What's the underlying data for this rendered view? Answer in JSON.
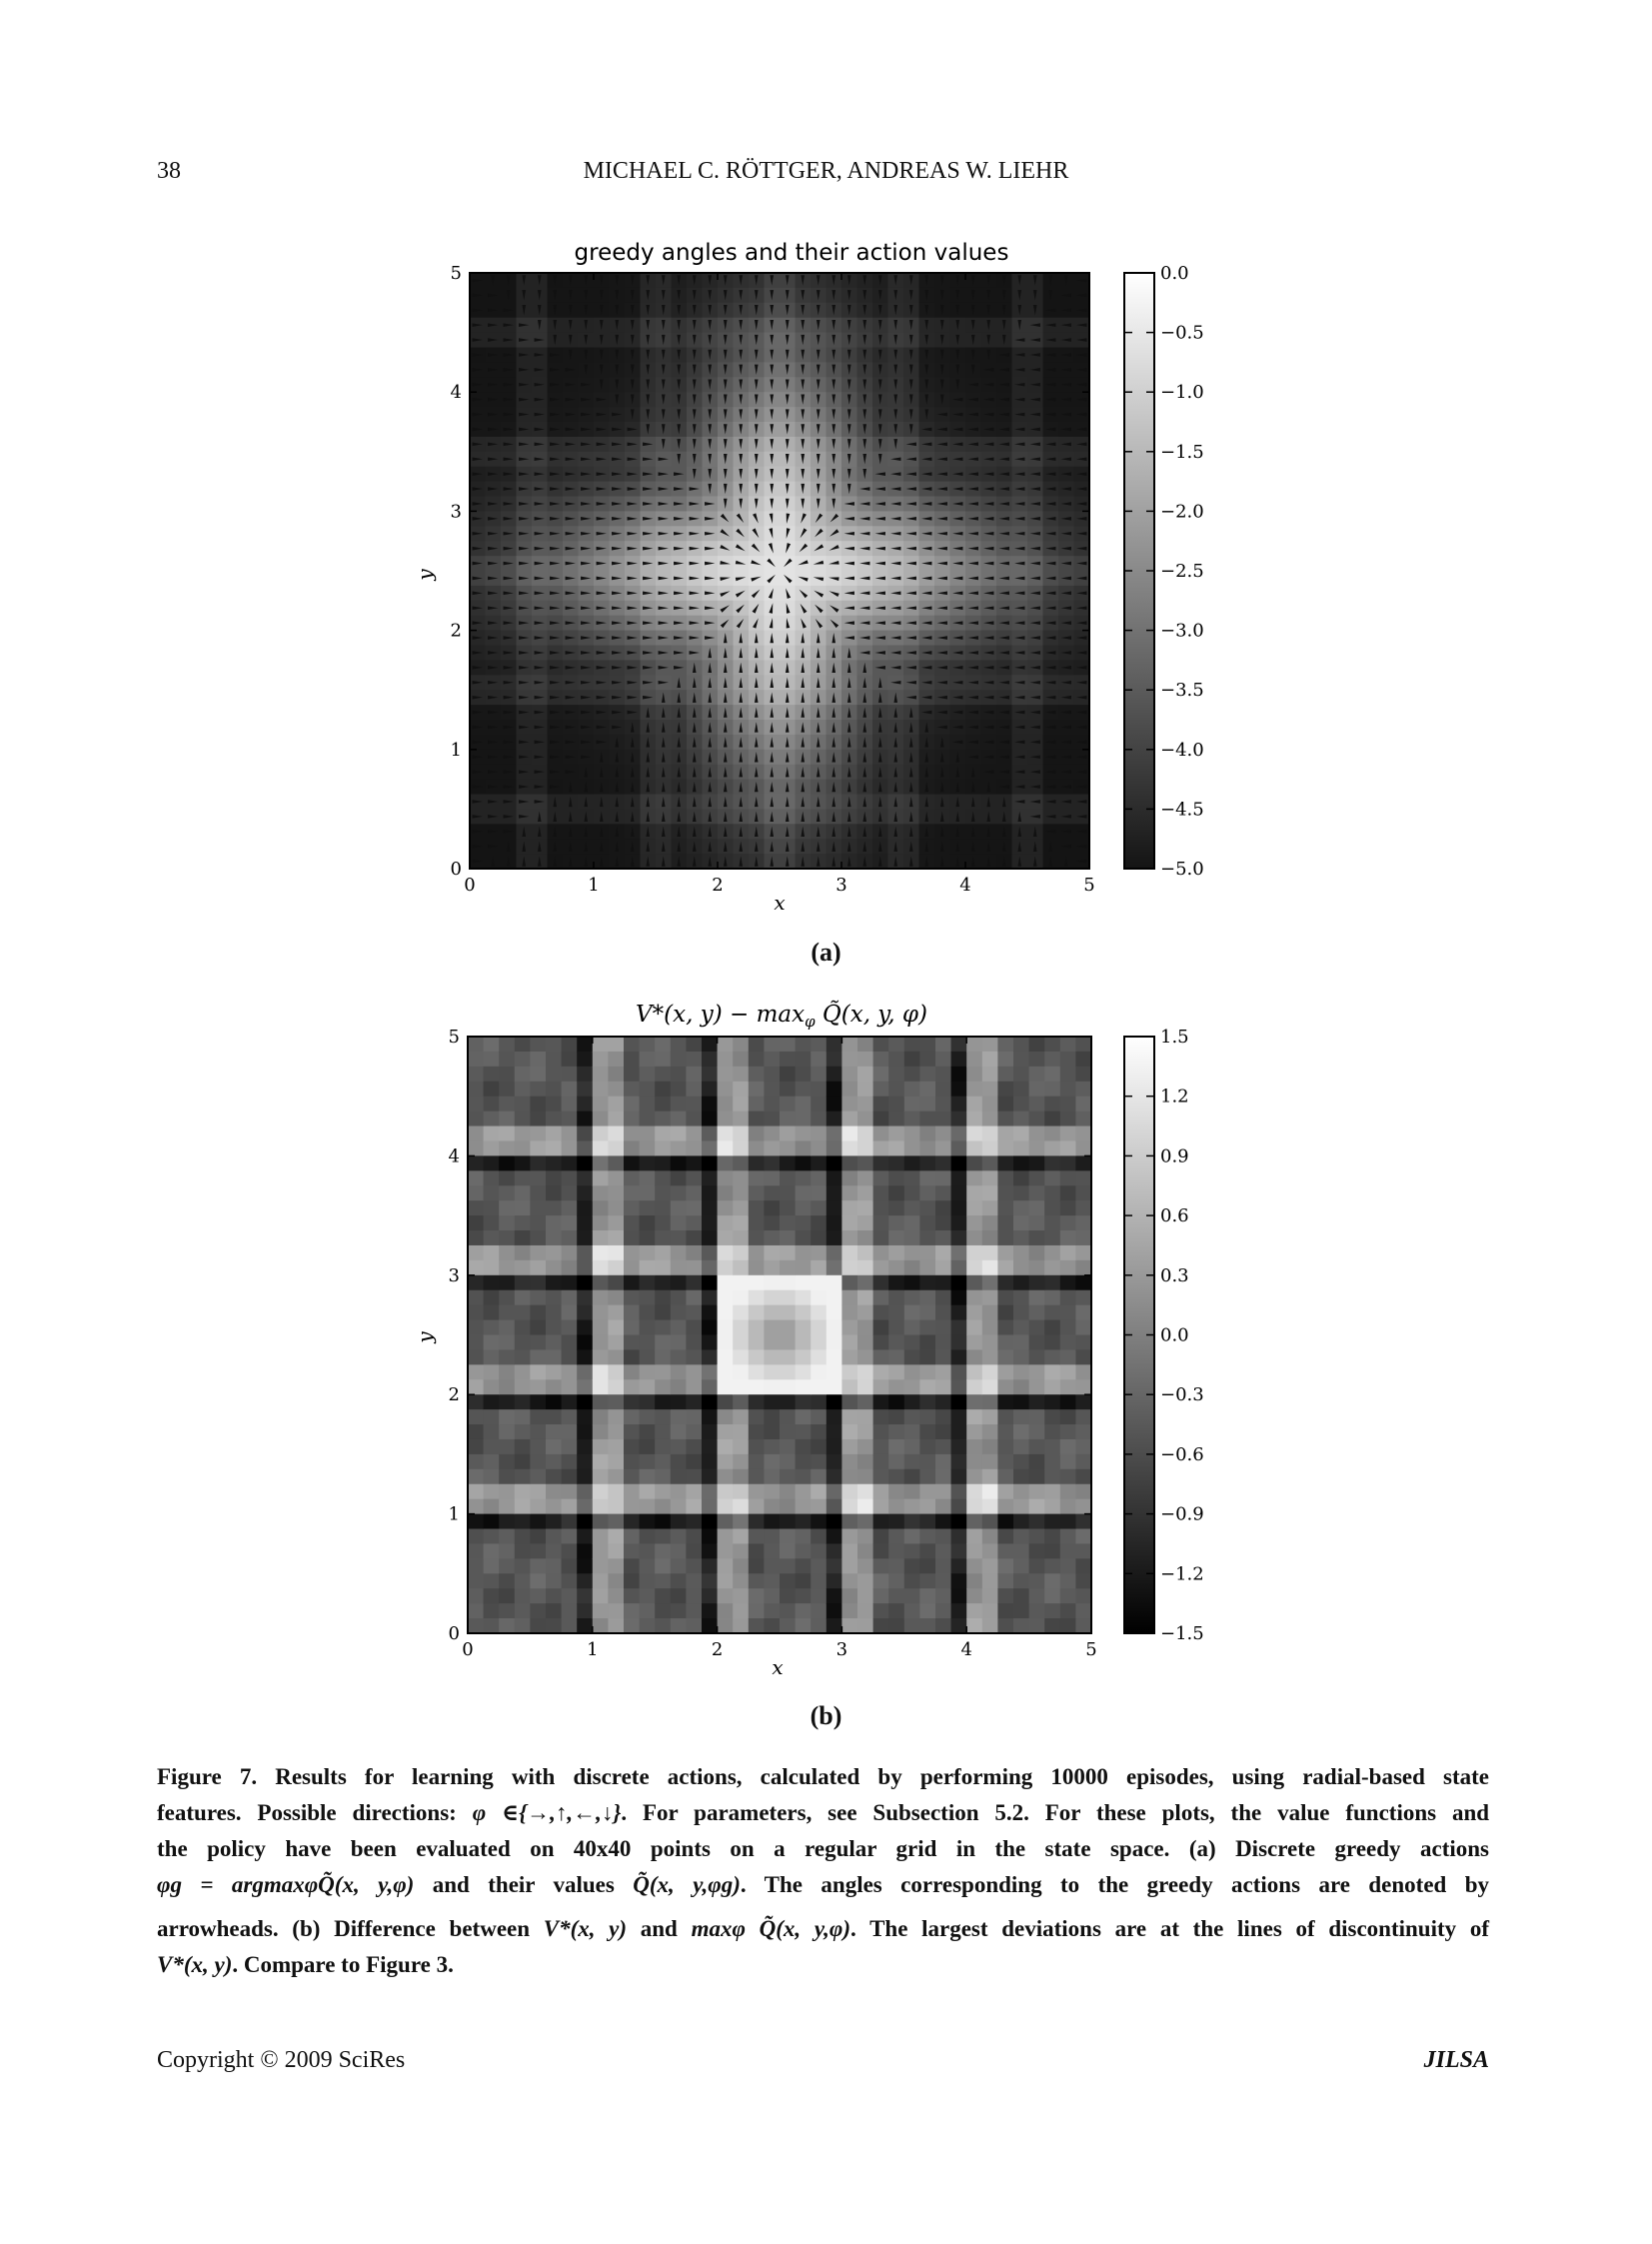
{
  "header": {
    "page_number": "38",
    "authors": "MICHAEL C. RÖTTGER, ANDREAS W. LIEHR"
  },
  "figure_a": {
    "chart_data": {
      "type": "heatmap",
      "title": "greedy angles and their action values",
      "xlabel": "x",
      "ylabel": "y",
      "xlim": [
        0,
        5
      ],
      "ylim": [
        0,
        5
      ],
      "x_ticks": [
        "0",
        "1",
        "2",
        "3",
        "4",
        "5"
      ],
      "y_ticks": [
        "0",
        "1",
        "2",
        "3",
        "4",
        "5"
      ],
      "colorbar_ticks": [
        "0.0",
        "−0.5",
        "−1.0",
        "−1.5",
        "−2.0",
        "−2.5",
        "−3.0",
        "−3.5",
        "−4.0",
        "−4.5",
        "−5.0"
      ],
      "colorbar_range": [
        -5.0,
        0.0
      ],
      "colormap": "gray",
      "grid_points": 40,
      "overlay": "arrowheads pointing along greedy angle"
    },
    "sublabel": "(a)"
  },
  "figure_b": {
    "chart_data": {
      "type": "heatmap",
      "title": "V*(x, y) − max_φ Q̃(x, y, φ)",
      "xlabel": "x",
      "ylabel": "y",
      "xlim": [
        0,
        5
      ],
      "ylim": [
        0,
        5
      ],
      "x_ticks": [
        "0",
        "1",
        "2",
        "3",
        "4",
        "5"
      ],
      "y_ticks": [
        "0",
        "1",
        "2",
        "3",
        "4",
        "5"
      ],
      "colorbar_ticks": [
        "1.5",
        "1.2",
        "0.9",
        "0.6",
        "0.3",
        "0.0",
        "−0.3",
        "−0.6",
        "−0.9",
        "−1.2",
        "−1.5"
      ],
      "colorbar_range": [
        -1.5,
        1.5
      ],
      "colormap": "gray",
      "grid_points": 40
    },
    "sublabel": "(b)"
  },
  "caption": {
    "l1": "Figure 7. Results for learning with discrete actions, calculated by performing 10000 episodes, using radial-based state",
    "l2a": "features. Possible directions:",
    "l2sym": "φ ∈{→,↑,←,↓}",
    "l2b": ". For parameters, see Subsection 5.2. For these plots, the value functions and",
    "l3": "the policy have been evaluated on 40x40 points on a regular grid in the state space. (a) Discrete greedy actions",
    "l4a": "φg = argmaxφQ̃(x, y,φ)",
    "l4b": "and their values",
    "l4c": "Q̃(x, y,φg)",
    "l4d": ". The angles corresponding to the greedy actions are denoted by",
    "l5a": "arrowheads. (b) Difference between",
    "l5b": "V*(x, y)",
    "l5c": "and",
    "l5d": "maxφ Q̃(x, y,φ)",
    "l5e": ". The largest deviations are at the lines of discontinuity of",
    "l6a": "V*(x, y)",
    "l6b": ". Compare to Figure 3."
  },
  "footer": {
    "copyright": "Copyright © 2009 SciRes",
    "journal": "JILSA"
  }
}
